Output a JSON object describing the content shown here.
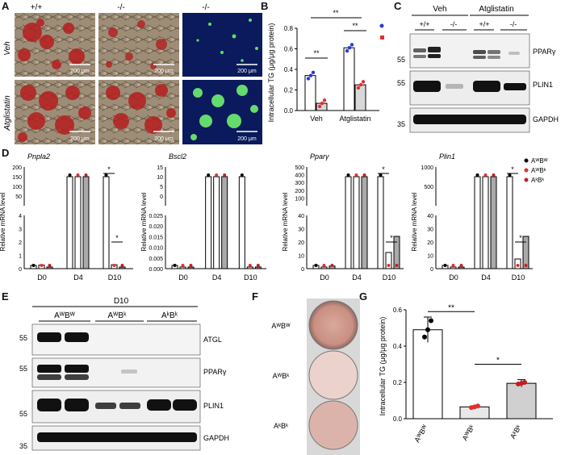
{
  "panel_labels": [
    "A",
    "B",
    "C",
    "D",
    "E",
    "F",
    "G"
  ],
  "panelA": {
    "col_headers": [
      "+/+",
      "-/-",
      "-/-"
    ],
    "row_labels": [
      "Veh",
      "Atglistatin"
    ],
    "scale_bar": "200 μm"
  },
  "panelB": {
    "ylabel": "Intracellular TG (μg/μg protein)",
    "sig": [
      "**",
      "**",
      "**"
    ],
    "chart_data": {
      "type": "bar",
      "categories": [
        "Veh",
        "Atglistatin"
      ],
      "series": [
        {
          "name": "",
          "values": [
            0.34,
            0.61
          ],
          "color": "#2a3bd0"
        },
        {
          "name": "",
          "values": [
            0.07,
            0.25
          ],
          "color": "#e03030"
        }
      ],
      "ylim": [
        0,
        0.8
      ],
      "yticks": [
        "0.0",
        "0.2",
        "0.4",
        "0.6",
        "0.8"
      ]
    }
  },
  "panelC": {
    "groups": [
      "Veh",
      "Atglistatin"
    ],
    "genotypes": [
      "+/+",
      "-/-",
      "+/+",
      "-/-"
    ],
    "blots": [
      {
        "name": "PPARγ",
        "mw": "55"
      },
      {
        "name": "PLIN1",
        "mw": "55"
      },
      {
        "name": "GAPDH",
        "mw": "35"
      }
    ]
  },
  "panelD": {
    "ylabel": "Relative mRNA level",
    "legend": [
      "AᵂBᵂ",
      "AᵂBᵏ",
      "AᵏBᵏ"
    ],
    "legend_colors": [
      "#000000",
      "#e03030",
      "#c02020"
    ],
    "chart_data": [
      {
        "type": "bar",
        "gene": "Pnpla2",
        "categories": [
          "D0",
          "D4",
          "D10"
        ],
        "series": [
          {
            "name": "AᵂBᵂ",
            "values": [
              1.0,
              175,
              65
            ]
          },
          {
            "name": "AᵂBᵏ",
            "values": [
              1.1,
              125,
              1.2
            ]
          },
          {
            "name": "AᵏBᵏ",
            "values": [
              0.02,
              2.7,
              0.05
            ]
          }
        ],
        "upper_ticks": [
          "50",
          "100",
          "150",
          "200"
        ],
        "lower_ticks": [
          "0",
          "1",
          "2",
          "3",
          "4"
        ],
        "sig": [
          "*",
          "*"
        ]
      },
      {
        "type": "bar",
        "gene": "Bscl2",
        "categories": [
          "D0",
          "D4",
          "D10"
        ],
        "series": [
          {
            "name": "AᵂBᵂ",
            "values": [
              1.0,
              13,
              9.5
            ]
          },
          {
            "name": "AᵂBᵏ",
            "values": [
              0.003,
              0.004,
              0.003
            ]
          },
          {
            "name": "AᵏBᵏ",
            "values": [
              0.003,
              0.004,
              0.004
            ]
          }
        ],
        "upper_ticks": [
          "0",
          "5",
          "10",
          "15"
        ],
        "lower_ticks": [
          "0.000",
          "0.005",
          "0.010",
          "0.015",
          "0.020",
          "0.025"
        ],
        "sig": []
      },
      {
        "type": "bar",
        "gene": "Pparγ",
        "categories": [
          "D0",
          "D4",
          "D10"
        ],
        "series": [
          {
            "name": "AᵂBᵂ",
            "values": [
              1.0,
              190,
              400
            ]
          },
          {
            "name": "AᵂBᵏ",
            "values": [
              0.5,
              210,
              5
            ]
          },
          {
            "name": "AᵏBᵏ",
            "values": [
              0.8,
              190,
              26
            ]
          }
        ],
        "upper_ticks": [
          "100",
          "200",
          "300",
          "400",
          "500"
        ],
        "lower_ticks": [
          "0",
          "10",
          "20",
          "30",
          "40"
        ],
        "sig": [
          "*",
          "*"
        ]
      },
      {
        "type": "bar",
        "gene": "Plin1",
        "categories": [
          "D0",
          "D4",
          "D10"
        ],
        "series": [
          {
            "name": "AᵂBᵂ",
            "values": [
              1.0,
              1150,
              600
            ]
          },
          {
            "name": "AᵂBᵏ",
            "values": [
              0.5,
              620,
              3
            ]
          },
          {
            "name": "AᵏBᵏ",
            "values": [
              0.5,
              600,
              19
            ]
          }
        ],
        "upper_ticks": [
          "500",
          "1000"
        ],
        "lower_ticks": [
          "0",
          "10",
          "20",
          "30",
          "40"
        ],
        "sig": [
          "*",
          "*"
        ]
      }
    ]
  },
  "panelE": {
    "day": "D10",
    "groups": [
      "AᵂBᵂ",
      "AᵂBᵏ",
      "AᵏBᵏ"
    ],
    "blots": [
      {
        "name": "ATGL",
        "mw": "55"
      },
      {
        "name": "PPARγ",
        "mw": "55"
      },
      {
        "name": "PLIN1",
        "mw": "55"
      },
      {
        "name": "GAPDH",
        "mw": "35"
      }
    ]
  },
  "panelF": {
    "labels": [
      "AᵂBᵂ",
      "AᵂBᵏ",
      "AᵏBᵏ"
    ]
  },
  "panelG": {
    "ylabel": "Intracellular TG (μg/μg protein)",
    "sig": [
      "**",
      "*"
    ],
    "chart_data": {
      "type": "bar",
      "categories": [
        "AᵂBᵂ",
        "AᵂBᵏ",
        "AᵏBᵏ"
      ],
      "values": [
        0.49,
        0.065,
        0.195
      ],
      "errors": [
        0.07,
        0.005,
        0.02
      ],
      "colors": [
        "#000000",
        "#e03030",
        "#c02020"
      ],
      "ylim": [
        0,
        0.6
      ],
      "yticks": [
        "0.0",
        "0.2",
        "0.4",
        "0.6"
      ]
    }
  }
}
